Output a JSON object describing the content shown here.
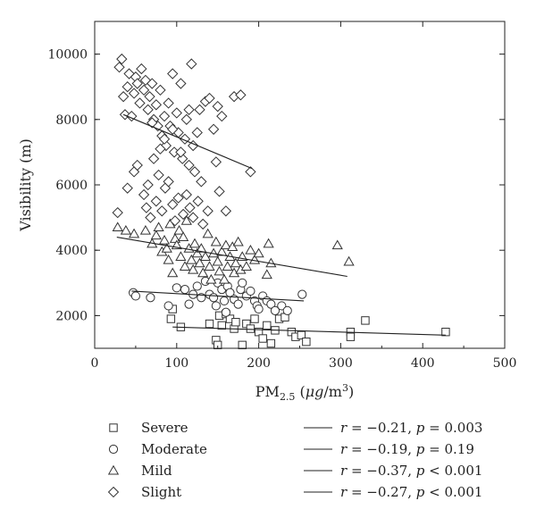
{
  "chart_data": {
    "type": "scatter",
    "title": "",
    "xlabel_main": "PM",
    "xlabel_sub": "2.5",
    "xlabel_unit_open": " (",
    "xlabel_unit_mu": "μg",
    "xlabel_unit_rest": "/m",
    "xlabel_unit_sup": "3",
    "xlabel_unit_close": ")",
    "ylabel": "Visibility (m)",
    "xlim": [
      0,
      500
    ],
    "ylim": [
      1000,
      11000
    ],
    "xticks": [
      0,
      100,
      200,
      300,
      400,
      500
    ],
    "yticks": [
      2000,
      4000,
      6000,
      8000,
      10000
    ],
    "grid": false,
    "legend_position": "bottom",
    "series": [
      {
        "name": "Severe",
        "marker": "square",
        "stat": {
          "r_label": "r",
          "r_value": " = −0.21, ",
          "p_label": "p",
          "p_value": " = 0.003"
        },
        "fit": {
          "x": [
            95,
            428
          ],
          "y": [
            1650,
            1400
          ]
        },
        "points": [
          [
            95,
            2200
          ],
          [
            93,
            1900
          ],
          [
            105,
            1650
          ],
          [
            140,
            1750
          ],
          [
            148,
            1250
          ],
          [
            150,
            1100
          ],
          [
            152,
            2000
          ],
          [
            155,
            1700
          ],
          [
            160,
            2050
          ],
          [
            165,
            1900
          ],
          [
            170,
            1600
          ],
          [
            172,
            1800
          ],
          [
            180,
            1100
          ],
          [
            185,
            1750
          ],
          [
            190,
            1600
          ],
          [
            195,
            1900
          ],
          [
            200,
            1500
          ],
          [
            205,
            1300
          ],
          [
            210,
            1700
          ],
          [
            215,
            1150
          ],
          [
            220,
            1550
          ],
          [
            225,
            1900
          ],
          [
            232,
            1950
          ],
          [
            240,
            1500
          ],
          [
            245,
            1350
          ],
          [
            252,
            1400
          ],
          [
            258,
            1200
          ],
          [
            312,
            1500
          ],
          [
            312,
            1350
          ],
          [
            330,
            1850
          ],
          [
            428,
            1500
          ]
        ]
      },
      {
        "name": "Moderate",
        "marker": "circle",
        "stat": {
          "r_label": "r",
          "r_value": " = −0.19, ",
          "p_label": "p",
          "p_value": " = 0.19"
        },
        "fit": {
          "x": [
            45,
            255
          ],
          "y": [
            2750,
            2450
          ]
        },
        "points": [
          [
            47,
            2700
          ],
          [
            50,
            2600
          ],
          [
            68,
            2550
          ],
          [
            90,
            2300
          ],
          [
            100,
            2850
          ],
          [
            110,
            2800
          ],
          [
            115,
            2350
          ],
          [
            120,
            2650
          ],
          [
            125,
            2900
          ],
          [
            130,
            2550
          ],
          [
            135,
            3050
          ],
          [
            140,
            2650
          ],
          [
            145,
            2550
          ],
          [
            148,
            2300
          ],
          [
            150,
            3000
          ],
          [
            155,
            2800
          ],
          [
            158,
            2450
          ],
          [
            160,
            2100
          ],
          [
            162,
            2900
          ],
          [
            165,
            2700
          ],
          [
            170,
            2500
          ],
          [
            175,
            2350
          ],
          [
            178,
            2800
          ],
          [
            180,
            3000
          ],
          [
            185,
            2600
          ],
          [
            190,
            2750
          ],
          [
            195,
            2450
          ],
          [
            198,
            2300
          ],
          [
            200,
            2200
          ],
          [
            205,
            2600
          ],
          [
            210,
            2450
          ],
          [
            215,
            2350
          ],
          [
            220,
            2150
          ],
          [
            228,
            2300
          ],
          [
            235,
            2150
          ],
          [
            253,
            2650
          ]
        ]
      },
      {
        "name": "Mild",
        "marker": "triangle",
        "stat": {
          "r_label": "r",
          "r_value": " = −0.37, ",
          "p_label": "p",
          "p_value": " < 0.001"
        },
        "fit": {
          "x": [
            27,
            308
          ],
          "y": [
            4400,
            3200
          ]
        },
        "points": [
          [
            28,
            4700
          ],
          [
            38,
            4600
          ],
          [
            48,
            4500
          ],
          [
            62,
            4600
          ],
          [
            70,
            4200
          ],
          [
            75,
            4450
          ],
          [
            78,
            4700
          ],
          [
            82,
            3950
          ],
          [
            85,
            4300
          ],
          [
            88,
            4050
          ],
          [
            90,
            3700
          ],
          [
            92,
            4800
          ],
          [
            95,
            3300
          ],
          [
            98,
            4350
          ],
          [
            100,
            4150
          ],
          [
            103,
            4600
          ],
          [
            105,
            3800
          ],
          [
            108,
            4400
          ],
          [
            110,
            3500
          ],
          [
            112,
            4900
          ],
          [
            115,
            4050
          ],
          [
            118,
            3700
          ],
          [
            120,
            3400
          ],
          [
            122,
            4200
          ],
          [
            125,
            3900
          ],
          [
            128,
            3600
          ],
          [
            130,
            4050
          ],
          [
            132,
            3300
          ],
          [
            135,
            3800
          ],
          [
            138,
            4500
          ],
          [
            140,
            3500
          ],
          [
            142,
            3100
          ],
          [
            145,
            3900
          ],
          [
            148,
            4250
          ],
          [
            150,
            3650
          ],
          [
            152,
            3350
          ],
          [
            155,
            3950
          ],
          [
            158,
            3100
          ],
          [
            160,
            4150
          ],
          [
            162,
            3500
          ],
          [
            165,
            3800
          ],
          [
            168,
            4100
          ],
          [
            170,
            3300
          ],
          [
            172,
            3600
          ],
          [
            175,
            4250
          ],
          [
            178,
            3400
          ],
          [
            180,
            3800
          ],
          [
            185,
            3500
          ],
          [
            190,
            4000
          ],
          [
            195,
            3700
          ],
          [
            200,
            3900
          ],
          [
            210,
            3250
          ],
          [
            212,
            4200
          ],
          [
            215,
            3600
          ],
          [
            296,
            4150
          ],
          [
            310,
            3650
          ]
        ]
      },
      {
        "name": "Slight",
        "marker": "diamond",
        "stat": {
          "r_label": "r",
          "r_value": " = −0.27, ",
          "p_label": "p",
          "p_value": " < 0.001"
        },
        "fit": {
          "x": [
            35,
            192
          ],
          "y": [
            8150,
            6500
          ]
        },
        "points": [
          [
            30,
            9600
          ],
          [
            33,
            9850
          ],
          [
            35,
            8700
          ],
          [
            37,
            8150
          ],
          [
            40,
            9000
          ],
          [
            42,
            9400
          ],
          [
            45,
            8100
          ],
          [
            48,
            8800
          ],
          [
            50,
            9300
          ],
          [
            52,
            9100
          ],
          [
            55,
            8500
          ],
          [
            57,
            9550
          ],
          [
            60,
            8900
          ],
          [
            62,
            9200
          ],
          [
            65,
            8300
          ],
          [
            67,
            8700
          ],
          [
            70,
            9100
          ],
          [
            72,
            8000
          ],
          [
            75,
            8450
          ],
          [
            77,
            7800
          ],
          [
            80,
            8900
          ],
          [
            82,
            7500
          ],
          [
            85,
            8100
          ],
          [
            87,
            7200
          ],
          [
            90,
            8500
          ],
          [
            92,
            7800
          ],
          [
            95,
            9400
          ],
          [
            97,
            7000
          ],
          [
            100,
            8200
          ],
          [
            102,
            7600
          ],
          [
            105,
            9100
          ],
          [
            107,
            6800
          ],
          [
            110,
            7400
          ],
          [
            112,
            8000
          ],
          [
            115,
            6600
          ],
          [
            118,
            9700
          ],
          [
            120,
            7200
          ],
          [
            122,
            6400
          ],
          [
            125,
            7600
          ],
          [
            128,
            8300
          ],
          [
            130,
            6100
          ],
          [
            135,
            8550
          ],
          [
            140,
            8650
          ],
          [
            145,
            7700
          ],
          [
            148,
            6700
          ],
          [
            150,
            8400
          ],
          [
            152,
            5800
          ],
          [
            155,
            8100
          ],
          [
            160,
            5200
          ],
          [
            170,
            8700
          ],
          [
            178,
            8750
          ],
          [
            190,
            6400
          ],
          [
            48,
            6400
          ],
          [
            52,
            6600
          ],
          [
            60,
            5700
          ],
          [
            63,
            5300
          ],
          [
            65,
            6000
          ],
          [
            68,
            5000
          ],
          [
            72,
            6800
          ],
          [
            75,
            5500
          ],
          [
            78,
            6300
          ],
          [
            82,
            5200
          ],
          [
            86,
            5900
          ],
          [
            90,
            6100
          ],
          [
            95,
            5400
          ],
          [
            98,
            4900
          ],
          [
            102,
            5600
          ],
          [
            108,
            5100
          ],
          [
            112,
            5700
          ],
          [
            116,
            5300
          ],
          [
            120,
            5000
          ],
          [
            126,
            5500
          ],
          [
            132,
            4800
          ],
          [
            138,
            5200
          ],
          [
            40,
            5900
          ],
          [
            28,
            5150
          ],
          [
            85,
            7400
          ],
          [
            95,
            7700
          ],
          [
            105,
            7000
          ],
          [
            115,
            8300
          ],
          [
            80,
            7100
          ],
          [
            70,
            7900
          ]
        ]
      }
    ]
  }
}
